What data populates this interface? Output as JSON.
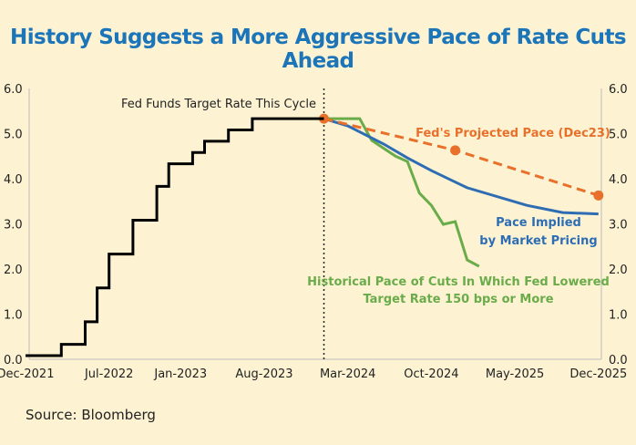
{
  "title": "History Suggests a More Aggressive Pace of Rate Cuts Ahead",
  "source": "Source: Bloomberg",
  "colors": {
    "background": "#fdf3d3",
    "title": "#1b75b8",
    "fed_funds": "#000000",
    "projected": "#e8702a",
    "market": "#2e6db3",
    "historical": "#6aab4a"
  },
  "chart_data": {
    "type": "line",
    "ylim": [
      0,
      6
    ],
    "yticks": [
      "0.0",
      "1.0",
      "2.0",
      "3.0",
      "4.0",
      "5.0",
      "6.0"
    ],
    "xticks": [
      {
        "date": "2021-12",
        "label": "Dec-2021"
      },
      {
        "date": "2022-07",
        "label": "Jul-2022"
      },
      {
        "date": "2023-01",
        "label": "Jan-2023"
      },
      {
        "date": "2023-08",
        "label": "Aug-2023"
      },
      {
        "date": "2024-03",
        "label": "Mar-2024"
      },
      {
        "date": "2024-10",
        "label": "Oct-2024"
      },
      {
        "date": "2025-05",
        "label": "May-2025"
      },
      {
        "date": "2025-12",
        "label": "Dec-2025"
      }
    ],
    "xlim": [
      "2021-12",
      "2025-12"
    ],
    "grid": false,
    "divider_date": "2024-01",
    "series": [
      {
        "key": "fed_funds",
        "name": "Fed Funds Target Rate This Cycle",
        "style": "step",
        "points": [
          [
            "2021-12",
            0.08
          ],
          [
            "2022-03",
            0.33
          ],
          [
            "2022-05",
            0.83
          ],
          [
            "2022-06",
            1.58
          ],
          [
            "2022-07",
            2.33
          ],
          [
            "2022-09",
            3.08
          ],
          [
            "2022-11",
            3.83
          ],
          [
            "2022-12",
            4.33
          ],
          [
            "2023-02",
            4.58
          ],
          [
            "2023-03",
            4.83
          ],
          [
            "2023-05",
            5.08
          ],
          [
            "2023-07",
            5.33
          ],
          [
            "2024-01",
            5.33
          ]
        ]
      },
      {
        "key": "projected",
        "name": "Fed's Projected Pace (Dec23)",
        "style": "dashed-markers",
        "points": [
          [
            "2024-01",
            5.33
          ],
          [
            "2024-12",
            4.63
          ],
          [
            "2025-12",
            3.63
          ]
        ]
      },
      {
        "key": "market",
        "name": "Pace Implied by Market Pricing",
        "style": "line",
        "points": [
          [
            "2024-01",
            5.33
          ],
          [
            "2024-03",
            5.17
          ],
          [
            "2024-06",
            4.77
          ],
          [
            "2024-08",
            4.46
          ],
          [
            "2024-10",
            4.18
          ],
          [
            "2025-01",
            3.8
          ],
          [
            "2025-06",
            3.41
          ],
          [
            "2025-09",
            3.25
          ],
          [
            "2025-12",
            3.22
          ]
        ]
      },
      {
        "key": "historical",
        "name": "Historical Pace of Cuts In Which Fed Lowered Target Rate 150 bps or More",
        "style": "line",
        "points": [
          [
            "2024-01",
            5.33
          ],
          [
            "2024-04",
            5.33
          ],
          [
            "2024-05",
            4.85
          ],
          [
            "2024-07",
            4.5
          ],
          [
            "2024-08",
            4.38
          ],
          [
            "2024-09",
            3.68
          ],
          [
            "2024-10",
            3.41
          ],
          [
            "2024-11",
            2.99
          ],
          [
            "2024-12",
            3.05
          ],
          [
            "2025-01",
            2.2
          ],
          [
            "2025-02",
            2.06
          ]
        ]
      }
    ],
    "annotations": {
      "fed_funds": "Fed Funds Target Rate This Cycle",
      "projected": "Fed's Projected Pace (Dec23)",
      "market_1": "Pace Implied",
      "market_2": "by Market Pricing",
      "historical_1": "Historical Pace of Cuts In Which Fed Lowered",
      "historical_2": "Target Rate 150 bps or More"
    }
  }
}
